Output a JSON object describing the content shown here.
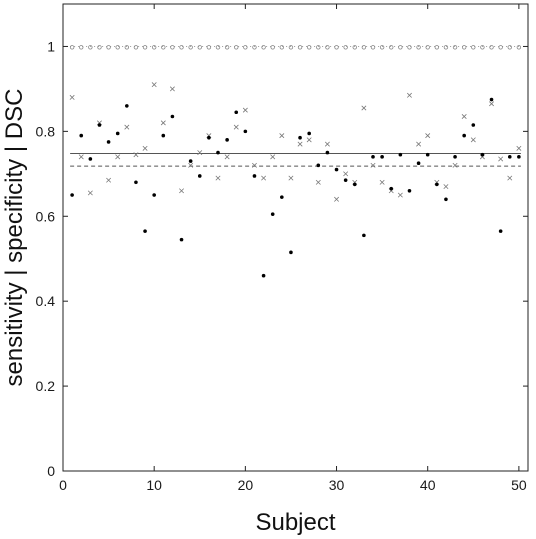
{
  "chart_data": {
    "type": "scatter",
    "title": "",
    "xlabel": "Subject",
    "ylabel": "sensitivity | specificity | DSC",
    "xlim": [
      0,
      51
    ],
    "ylim": [
      0,
      1.1
    ],
    "xticks": [
      0,
      10,
      20,
      30,
      40,
      50
    ],
    "yticks": [
      0,
      0.2,
      0.4,
      0.6,
      0.8,
      1
    ],
    "grid": false,
    "legend": "none",
    "x": [
      1,
      2,
      3,
      4,
      5,
      6,
      7,
      8,
      9,
      10,
      11,
      12,
      13,
      14,
      15,
      16,
      17,
      18,
      19,
      20,
      21,
      22,
      23,
      24,
      25,
      26,
      27,
      28,
      29,
      30,
      31,
      32,
      33,
      34,
      35,
      36,
      37,
      38,
      39,
      40,
      41,
      42,
      43,
      44,
      45,
      46,
      47,
      48,
      49,
      50
    ],
    "series": [
      {
        "marker": "circle",
        "color": "#888888",
        "values": [
          0.998,
          0.998,
          0.998,
          0.998,
          0.998,
          0.998,
          0.998,
          0.998,
          0.998,
          0.998,
          0.998,
          0.998,
          0.998,
          0.998,
          0.998,
          0.998,
          0.998,
          0.998,
          0.998,
          0.998,
          0.998,
          0.998,
          0.998,
          0.998,
          0.998,
          0.998,
          0.998,
          0.998,
          0.998,
          0.998,
          0.998,
          0.998,
          0.998,
          0.998,
          0.998,
          0.998,
          0.998,
          0.998,
          0.998,
          0.998,
          0.998,
          0.998,
          0.998,
          0.998,
          0.998,
          0.998,
          0.998,
          0.998,
          0.998,
          0.998
        ]
      },
      {
        "marker": "x",
        "color": "#777777",
        "values": [
          0.88,
          0.74,
          0.655,
          0.82,
          0.685,
          0.74,
          0.81,
          0.745,
          0.76,
          0.91,
          0.82,
          0.9,
          0.66,
          0.72,
          0.75,
          0.79,
          0.69,
          0.74,
          0.81,
          0.85,
          0.72,
          0.69,
          0.74,
          0.79,
          0.69,
          0.77,
          0.78,
          0.68,
          0.77,
          0.64,
          0.7,
          0.68,
          0.855,
          0.72,
          0.68,
          0.66,
          0.65,
          0.885,
          0.77,
          0.79,
          0.68,
          0.67,
          0.72,
          0.835,
          0.78,
          0.74,
          0.865,
          0.735,
          0.69,
          0.76
        ]
      },
      {
        "marker": "dot",
        "color": "#000000",
        "values": [
          0.65,
          0.79,
          0.735,
          0.815,
          0.775,
          0.795,
          0.86,
          0.68,
          0.565,
          0.65,
          0.79,
          0.835,
          0.545,
          0.73,
          0.695,
          0.785,
          0.75,
          0.78,
          0.845,
          0.8,
          0.695,
          0.46,
          0.605,
          0.645,
          0.515,
          0.785,
          0.795,
          0.72,
          0.75,
          0.71,
          0.685,
          0.675,
          0.555,
          0.74,
          0.74,
          0.665,
          0.745,
          0.66,
          0.725,
          0.745,
          0.675,
          0.64,
          0.74,
          0.79,
          0.815,
          0.745,
          0.875,
          0.565,
          0.74,
          0.74
        ]
      }
    ],
    "hlines": [
      {
        "y": 1.0,
        "style": "dotted",
        "color": "#9a9a9a"
      },
      {
        "y": 0.748,
        "style": "solid",
        "color": "#555555"
      },
      {
        "y": 0.718,
        "style": "dashed",
        "color": "#555555"
      }
    ]
  }
}
